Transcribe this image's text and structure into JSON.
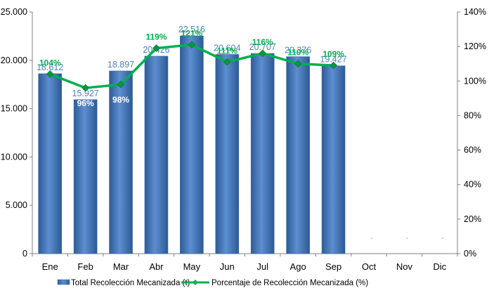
{
  "chart_data": {
    "type": "bar",
    "categories": [
      "Ene",
      "Feb",
      "Mar",
      "Abr",
      "May",
      "Jun",
      "Jul",
      "Ago",
      "Sep",
      "Oct",
      "Nov",
      "Dic"
    ],
    "series": [
      {
        "name": "Total Recolección Mecanizada (t)",
        "type": "bar",
        "axis": "left",
        "values": [
          18612,
          15927,
          18897,
          20426,
          22516,
          20604,
          20707,
          20376,
          19427,
          null,
          null,
          null
        ],
        "labels": [
          "18.612",
          "15.927",
          "18.897",
          "20.426",
          "22.516",
          "20.604",
          "20.707",
          "20.376",
          "19.427",
          "-",
          "-",
          "-"
        ],
        "color": "#4f81bd"
      },
      {
        "name": "Porcentaje de Recolección Mecanizada (%)",
        "type": "line",
        "axis": "right",
        "values": [
          104,
          96,
          98,
          119,
          121,
          111,
          116,
          110,
          109,
          null,
          null,
          null
        ],
        "labels": [
          "104%",
          "96%",
          "98%",
          "119%",
          "121%",
          "111%",
          "116%",
          "110%",
          "109%",
          "",
          "",
          ""
        ],
        "color": "#00b050"
      }
    ],
    "y_left": {
      "ylim": [
        0,
        25000
      ],
      "ticks": [
        0,
        5000,
        10000,
        15000,
        20000,
        25000
      ],
      "tick_labels": [
        "0",
        "5.000",
        "10.000",
        "15.000",
        "20.000",
        "25.000"
      ]
    },
    "y_right": {
      "ylim": [
        0,
        140
      ],
      "ticks": [
        0,
        20,
        40,
        60,
        80,
        100,
        120,
        140
      ],
      "tick_labels": [
        "0%",
        "20%",
        "40%",
        "60%",
        "80%",
        "100%",
        "120%",
        "140%"
      ]
    },
    "grid": false,
    "legend": "bottom"
  }
}
